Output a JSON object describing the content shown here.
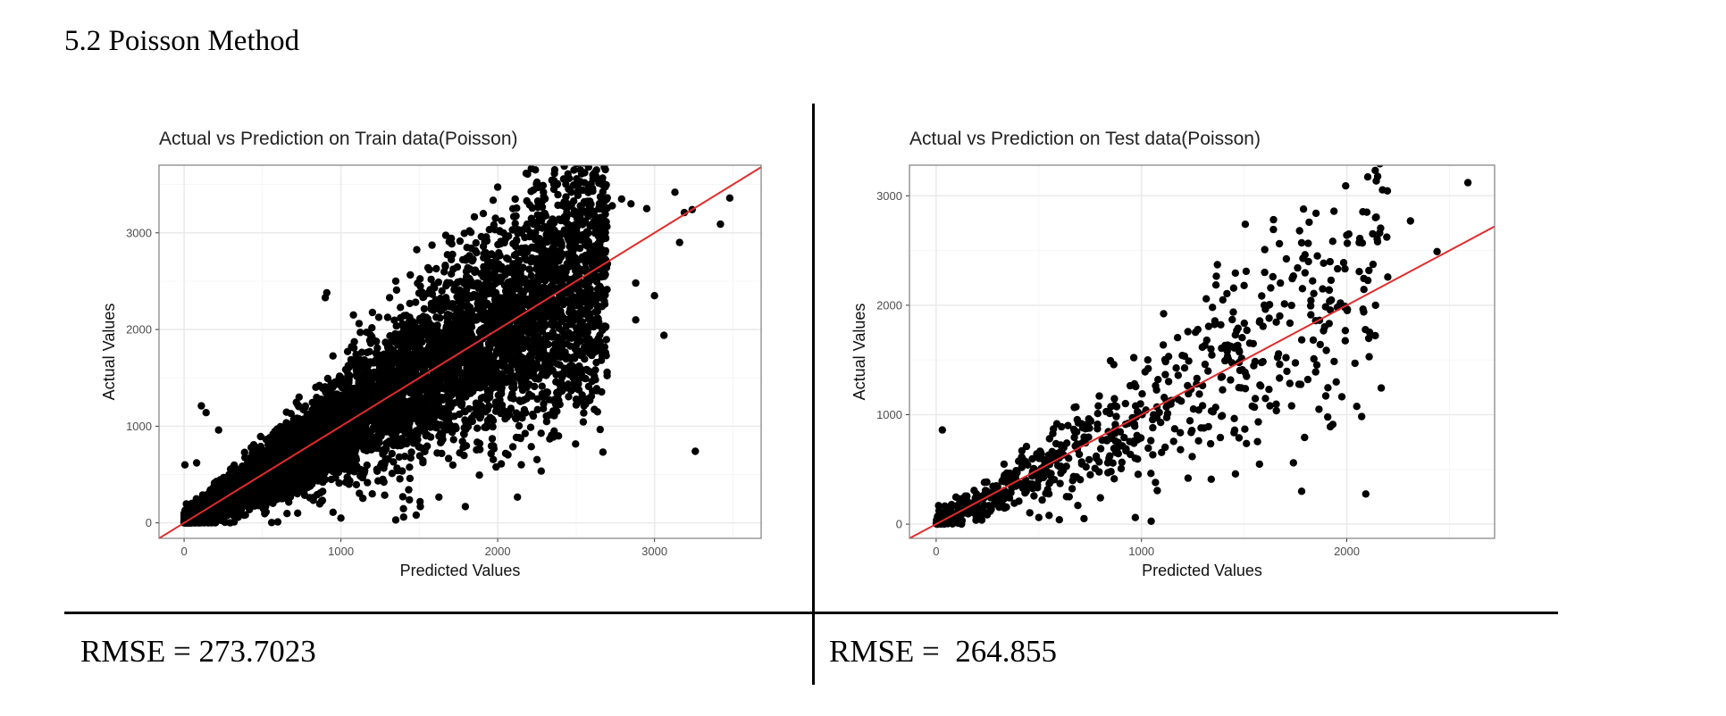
{
  "section": {
    "heading": "5.2  Poisson Method"
  },
  "results": {
    "train_rmse": "RMSE = 273.7023",
    "test_rmse": "RMSE =  264.855"
  },
  "colors": {
    "point": "#000000",
    "fit_line": "#e32b2b",
    "grid_major": "#ebebeb",
    "grid_minor": "#f5f5f5",
    "panel_border": "#7f7f7f"
  },
  "chart_data": [
    {
      "type": "scatter",
      "title": "Actual vs Prediction on Train data(Poisson)",
      "xlabel": "Predicted Values",
      "ylabel": "Actual Values",
      "xlim": [
        -160,
        3680
      ],
      "ylim": [
        -160,
        3700
      ],
      "xticks": [
        0,
        1000,
        2000,
        3000
      ],
      "xtick_labels": [
        "0",
        "1000",
        "2000",
        "3000"
      ],
      "yticks": [
        0,
        1000,
        2000,
        3000
      ],
      "ytick_labels": [
        "0",
        "1000",
        "2000",
        "3000"
      ],
      "grid": true,
      "reference_line": {
        "slope": 1,
        "intercept": 0
      },
      "n_points": 7500,
      "points": [
        [
          2620,
          3560
        ],
        [
          3130,
          3420
        ],
        [
          3480,
          3360
        ],
        [
          3240,
          3240
        ],
        [
          3190,
          3210
        ],
        [
          3420,
          3090
        ],
        [
          2850,
          3300
        ],
        [
          2790,
          3350
        ],
        [
          2950,
          3250
        ],
        [
          2730,
          3280
        ],
        [
          3160,
          2900
        ],
        [
          2470,
          3290
        ],
        [
          2300,
          3200
        ],
        [
          2390,
          3140
        ],
        [
          3000,
          2350
        ],
        [
          2880,
          2100
        ],
        [
          3060,
          1940
        ],
        [
          2880,
          2480
        ],
        [
          3260,
          740
        ],
        [
          2590,
          1560
        ],
        [
          2500,
          1220
        ],
        [
          2550,
          1210
        ],
        [
          2360,
          950
        ],
        [
          2290,
          1300
        ],
        [
          1820,
          3020
        ],
        [
          1800,
          2600
        ],
        [
          1350,
          2500
        ],
        [
          910,
          2380
        ],
        [
          900,
          2330
        ],
        [
          1080,
          2150
        ],
        [
          1780,
          780
        ],
        [
          2100,
          1500
        ],
        [
          1480,
          80
        ],
        [
          1400,
          60
        ],
        [
          1350,
          30
        ],
        [
          1200,
          300
        ],
        [
          1000,
          50
        ],
        [
          950,
          110
        ],
        [
          220,
          960
        ],
        [
          110,
          1210
        ],
        [
          140,
          1140
        ],
        [
          5,
          600
        ],
        [
          80,
          620
        ]
      ],
      "cloud": {
        "x_min": 0,
        "x_max": 2700,
        "spread": 0.27,
        "count": 7450
      }
    },
    {
      "type": "scatter",
      "title": "Actual vs Prediction on Test data(Poisson)",
      "xlabel": "Predicted Values",
      "ylabel": "Actual Values",
      "xlim": [
        -130,
        2720
      ],
      "ylim": [
        -130,
        3280
      ],
      "xticks": [
        0,
        1000,
        2000
      ],
      "xtick_labels": [
        "0",
        "1000",
        "2000"
      ],
      "yticks": [
        0,
        1000,
        2000,
        3000
      ],
      "ytick_labels": [
        "0",
        "1000",
        "2000",
        "3000"
      ],
      "grid": true,
      "reference_line": {
        "slope": 1,
        "intercept": 0
      },
      "n_points": 730,
      "points": [
        [
          2590,
          3120
        ],
        [
          1850,
          2840
        ],
        [
          2140,
          2800
        ],
        [
          2310,
          2770
        ],
        [
          2160,
          2660
        ],
        [
          2010,
          2650
        ],
        [
          2000,
          2640
        ],
        [
          2440,
          2490
        ],
        [
          2150,
          2580
        ],
        [
          1780,
          2570
        ],
        [
          1510,
          2310
        ],
        [
          1370,
          2370
        ],
        [
          1640,
          2260
        ],
        [
          1600,
          2300
        ],
        [
          1500,
          2180
        ],
        [
          2140,
          2000
        ],
        [
          2040,
          1470
        ],
        [
          1920,
          890
        ],
        [
          1780,
          300
        ],
        [
          1740,
          560
        ],
        [
          1340,
          410
        ],
        [
          1190,
          680
        ],
        [
          970,
          60
        ],
        [
          800,
          240
        ],
        [
          720,
          50
        ],
        [
          690,
          170
        ],
        [
          30,
          860
        ],
        [
          550,
          80
        ],
        [
          600,
          40
        ],
        [
          500,
          60
        ]
      ],
      "cloud": {
        "x_min": 0,
        "x_max": 2200,
        "spread": 0.28,
        "count": 700
      }
    }
  ]
}
